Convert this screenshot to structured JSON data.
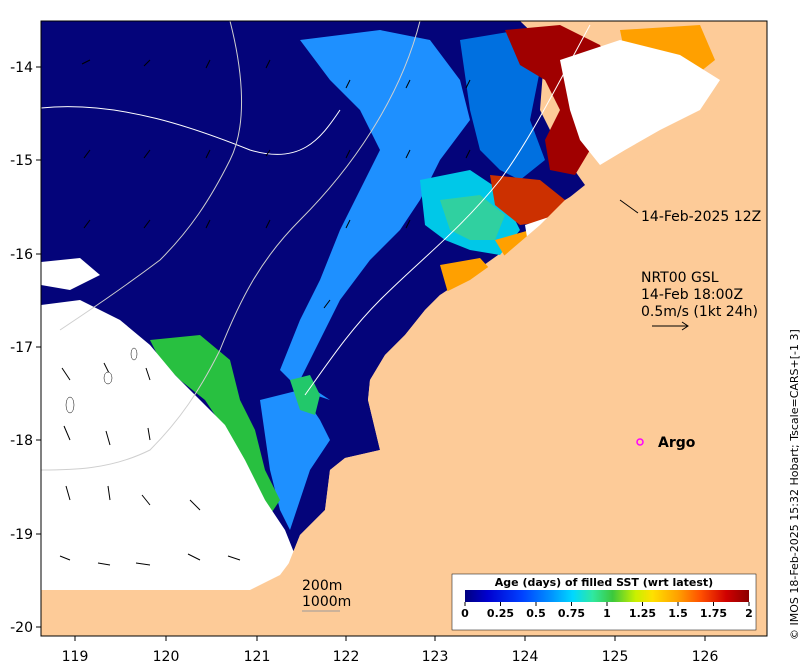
{
  "map": {
    "lon_ticks": [
      "119",
      "120",
      "121",
      "122",
      "123",
      "124",
      "125",
      "126"
    ],
    "lat_ticks": [
      "-14",
      "-15",
      "-16",
      "-17",
      "-18",
      "-19",
      "-20"
    ],
    "lon_range": [
      118.6,
      126.7
    ],
    "lat_range": [
      -20.1,
      -13.5
    ]
  },
  "annotations": {
    "track_date": "14-Feb-2025 12Z",
    "current_source": "NRT00 GSL",
    "current_time": "14-Feb 18:00Z",
    "current_scale": "0.5m/s (1kt 24h)",
    "argo_label": "Argo",
    "contour_200": "200m",
    "contour_1000": "1000m"
  },
  "colorbar": {
    "title": "Age (days) of filled SST (wrt latest)",
    "ticks": [
      "0",
      "0.25",
      "0.5",
      "0.75",
      "1",
      "1.25",
      "1.5",
      "1.75",
      "2"
    ],
    "range": [
      0,
      2
    ],
    "colors": [
      "#00007f",
      "#0000d0",
      "#0040ff",
      "#0090ff",
      "#00d8ff",
      "#30e8a0",
      "#3cc83c",
      "#c8f000",
      "#ffe000",
      "#ffa000",
      "#ff5000",
      "#d00000",
      "#8b0000"
    ]
  },
  "credit": "© IMOS 18-Feb-2025 15:32 Hobart; Tscale=CARS+[-1 3]",
  "colors": {
    "land": "#fdcb98",
    "ocean_deep": "#04047a",
    "no_data": "#ffffff",
    "argo_marker": "#ff00ff"
  }
}
